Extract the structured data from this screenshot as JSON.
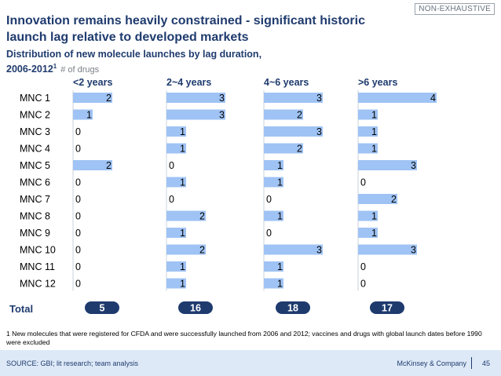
{
  "tag": "NON-EXHAUSTIVE",
  "title": "Innovation remains heavily constrained - significant historic launch lag relative to developed markets",
  "subtitle": "Distribution of new molecule launches by lag duration,",
  "subtitle_period": "2006-2012",
  "subtitle_sup": "1",
  "subtitle_unit": "# of drugs",
  "chart_data": {
    "type": "bar",
    "orientation": "horizontal",
    "small_multiples": true,
    "categories": [
      "MNC 1",
      "MNC 2",
      "MNC 3",
      "MNC 4",
      "MNC 5",
      "MNC 6",
      "MNC 7",
      "MNC 8",
      "MNC 9",
      "MNC 10",
      "MNC 11",
      "MNC 12"
    ],
    "series": [
      {
        "name": "<2 years",
        "values": [
          2,
          1,
          0,
          0,
          2,
          0,
          0,
          0,
          0,
          0,
          0,
          0
        ],
        "total": "5"
      },
      {
        "name": "2~4 years",
        "values": [
          3,
          3,
          1,
          1,
          0,
          1,
          0,
          2,
          1,
          2,
          1,
          1
        ],
        "total": "16"
      },
      {
        "name": "4~6 years",
        "values": [
          3,
          2,
          3,
          2,
          1,
          1,
          0,
          1,
          0,
          3,
          1,
          1
        ],
        "total": "18"
      },
      {
        "name": ">6 years",
        "values": [
          4,
          1,
          1,
          1,
          3,
          0,
          2,
          1,
          1,
          3,
          0,
          0
        ],
        "total": "17"
      }
    ],
    "total_label": "Total",
    "xlim": [
      0,
      4
    ],
    "grid": false,
    "bar_color": "#9fc3f4",
    "header_color": "#1f3b6e",
    "total_badge_color": "#1f3b6e"
  },
  "footnote": "1 New molecules that were registered for CFDA  and were successfully launched from 2006 and 2012; vaccines and drugs with global launch dates before 1990 were excluded",
  "source": "SOURCE: GBI; lit research; team analysis",
  "company": "McKinsey & Company",
  "page": "45"
}
